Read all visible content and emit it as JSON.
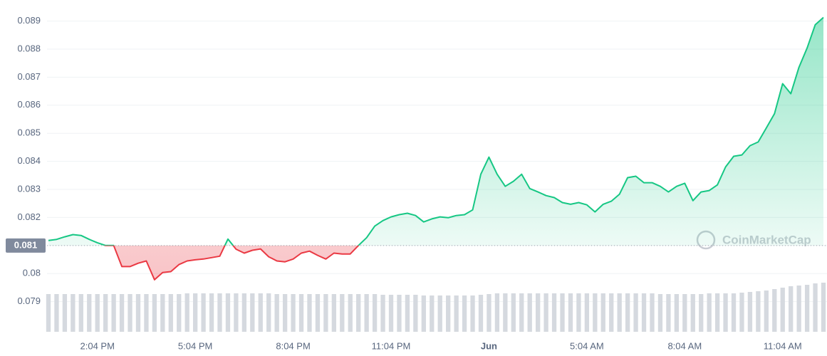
{
  "chart_data": {
    "type": "line",
    "watermark": "CoinMarketCap",
    "categories": [
      null,
      null,
      null,
      null,
      null,
      null,
      "2:04 PM",
      null,
      null,
      null,
      null,
      null,
      null,
      null,
      null,
      null,
      null,
      null,
      "5:04 PM",
      null,
      null,
      null,
      null,
      null,
      null,
      null,
      null,
      null,
      null,
      null,
      "8:04 PM",
      null,
      null,
      null,
      null,
      null,
      null,
      null,
      null,
      null,
      null,
      null,
      "11:04 PM",
      null,
      null,
      null,
      null,
      null,
      null,
      null,
      null,
      null,
      null,
      null,
      "Jun",
      null,
      null,
      null,
      null,
      null,
      null,
      null,
      null,
      null,
      null,
      null,
      "5:04 AM",
      null,
      null,
      null,
      null,
      null,
      null,
      null,
      null,
      null,
      null,
      null,
      "8:04 AM",
      null,
      null,
      null,
      null,
      null,
      null,
      null,
      null,
      null,
      null,
      null,
      "11:04 AM",
      null,
      null,
      null,
      null,
      null
    ],
    "values": [
      0.08118,
      0.08122,
      0.08131,
      0.08139,
      0.08136,
      0.08122,
      0.0811,
      0.081,
      0.081,
      0.08025,
      0.08025,
      0.08037,
      0.08045,
      0.07978,
      0.08004,
      0.08007,
      0.08032,
      0.08045,
      0.08049,
      0.08052,
      0.08057,
      0.08062,
      0.08123,
      0.08087,
      0.08073,
      0.08083,
      0.08088,
      0.0806,
      0.08045,
      0.08042,
      0.08052,
      0.08073,
      0.0808,
      0.08065,
      0.08052,
      0.08073,
      0.0807,
      0.0807,
      0.081,
      0.08128,
      0.08169,
      0.08189,
      0.08202,
      0.0821,
      0.08215,
      0.08207,
      0.08184,
      0.08195,
      0.08202,
      0.08199,
      0.08207,
      0.0821,
      0.08227,
      0.08354,
      0.08415,
      0.08354,
      0.08311,
      0.08329,
      0.08354,
      0.08303,
      0.08291,
      0.08278,
      0.08271,
      0.08253,
      0.08247,
      0.08253,
      0.08245,
      0.0822,
      0.08247,
      0.08258,
      0.08283,
      0.08342,
      0.08347,
      0.08324,
      0.08324,
      0.08311,
      0.08291,
      0.08311,
      0.08322,
      0.0826,
      0.08291,
      0.08296,
      0.08316,
      0.0838,
      0.08418,
      0.08423,
      0.08456,
      0.08469,
      0.08519,
      0.0857,
      0.08677,
      0.08641,
      0.08735,
      0.08804,
      0.08887,
      0.08913
    ],
    "volume": [
      53,
      53,
      53,
      53,
      53,
      53,
      53,
      53,
      53,
      53,
      53,
      53,
      53,
      53,
      53,
      53,
      53,
      54,
      54,
      54,
      54,
      54,
      54,
      54,
      54,
      54,
      54,
      54,
      53,
      53,
      53,
      53,
      53,
      53,
      53,
      53,
      53,
      53,
      53,
      53,
      53,
      52,
      52,
      52,
      52,
      52,
      51,
      51,
      51,
      51,
      51,
      51,
      51,
      52,
      53,
      54,
      54,
      54,
      54,
      54,
      54,
      54,
      54,
      54,
      54,
      54,
      54,
      54,
      54,
      54,
      54,
      54,
      54,
      54,
      54,
      53,
      53,
      53,
      53,
      53,
      53,
      54,
      54,
      54,
      54,
      55,
      56,
      57,
      58,
      60,
      62,
      64,
      65,
      66,
      68,
      69
    ],
    "baseline": 0.081,
    "up_color": "#16c784",
    "down_color": "#ea3943",
    "volume_color": "#d5d9df",
    "ylim": [
      0.0779,
      0.0897
    ],
    "yticks": [
      0.079,
      0.08,
      0.081,
      0.082,
      0.083,
      0.084,
      0.085,
      0.086,
      0.087,
      0.088,
      0.089
    ],
    "grid": true
  }
}
